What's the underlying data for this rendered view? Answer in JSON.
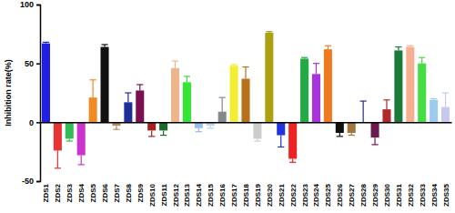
{
  "chart_data": {
    "type": "bar",
    "y_label": "Inhibition rate(%)",
    "categories": [
      "ZDS1",
      "ZDS2",
      "ZDS3",
      "ZDS4",
      "ZDS5",
      "ZDS6",
      "ZDS7",
      "ZDS8",
      "ZDS9",
      "ZDS10",
      "ZDS11",
      "ZDS12",
      "ZDS13",
      "ZDS14",
      "ZDS15",
      "ZDS16",
      "ZDS17",
      "ZDS18",
      "ZDS19",
      "ZDS20",
      "ZDS21",
      "ZDS22",
      "ZDS23",
      "ZDS24",
      "ZDS25",
      "ZDS26",
      "ZDS27",
      "ZDS28",
      "ZDS29",
      "ZDS30",
      "ZDS31",
      "ZDS32",
      "ZDS33",
      "ZDS34",
      "ZDS35"
    ],
    "values": [
      67,
      -24,
      -14,
      -28,
      21,
      64,
      -3,
      17,
      27,
      -7,
      -7,
      46,
      34,
      -5,
      -3,
      9,
      48,
      37,
      -14,
      76,
      -11,
      -31,
      54,
      41,
      62,
      -9,
      -9,
      0,
      -13,
      11,
      61,
      64,
      50,
      19,
      13
    ],
    "errors": [
      1,
      15,
      2,
      8,
      15,
      2,
      3,
      8,
      5,
      5,
      4,
      6,
      5,
      3,
      2,
      12,
      1,
      10,
      2,
      1,
      10,
      3,
      1,
      9,
      3,
      3,
      2,
      18,
      6,
      8,
      3,
      1,
      5,
      1,
      12
    ],
    "colors": [
      "#1f1fe6",
      "#e63333",
      "#33bb55",
      "#cc33cc",
      "#f08a24",
      "#111111",
      "#b8865a",
      "#1f2f9a",
      "#7a1050",
      "#a52020",
      "#1a6a2a",
      "#f0b48a",
      "#33e633",
      "#99bbee",
      "#bcd4f4",
      "#888888",
      "#f4ee33",
      "#b8701a",
      "#cccccc",
      "#aaa010",
      "#2233dd",
      "#ee2222",
      "#22aa44",
      "#aa33dd",
      "#f07a20",
      "#111111",
      "#a0783c",
      "#1f2f8a",
      "#6a1a50",
      "#b02a2a",
      "#1a7a3a",
      "#f4b090",
      "#44dd44",
      "#99ccee",
      "#c8c8f0"
    ],
    "ylim": [
      -50,
      100
    ],
    "yticks": [
      -50,
      0,
      50,
      100
    ]
  }
}
